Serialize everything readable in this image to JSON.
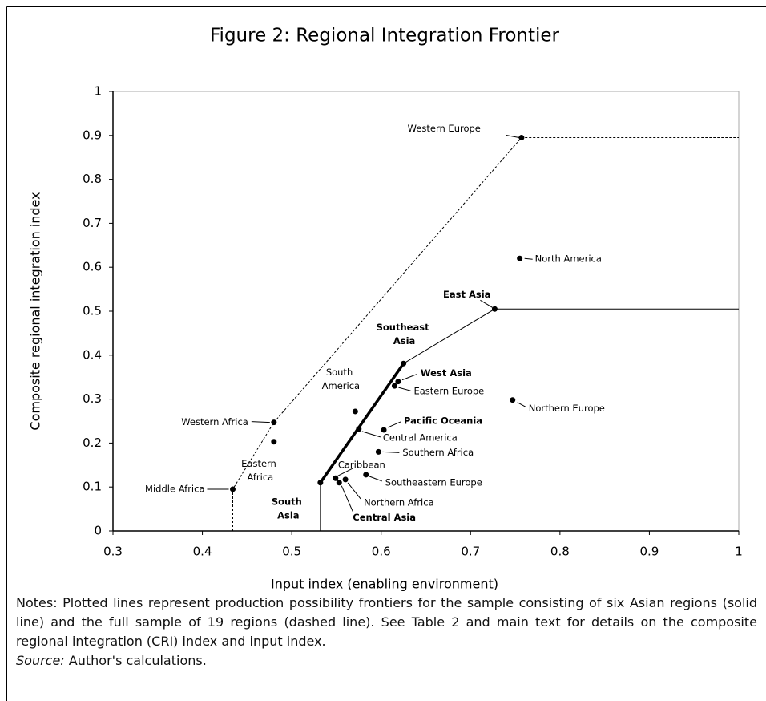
{
  "chart_data": {
    "type": "scatter",
    "title": "Figure 2: Regional Integration Frontier",
    "xlabel": "Input index (enabling environment)",
    "ylabel": "Composite regional integration index",
    "xlim": [
      0.3,
      1
    ],
    "ylim": [
      0,
      1
    ],
    "xticks": [
      0.3,
      0.4,
      0.5,
      0.6,
      0.7,
      0.8,
      0.9,
      1
    ],
    "yticks": [
      0,
      0.1,
      0.2,
      0.3,
      0.4,
      0.5,
      0.6,
      0.7,
      0.8,
      0.9,
      1
    ],
    "grid": false,
    "color": "#000000",
    "points": [
      {
        "name": "Western Europe",
        "x": 0.757,
        "y": 0.895,
        "bold": false
      },
      {
        "name": "North America",
        "x": 0.755,
        "y": 0.62,
        "bold": false
      },
      {
        "name": "Northern Europe",
        "x": 0.747,
        "y": 0.298,
        "bold": false
      },
      {
        "name": "East Asia",
        "x": 0.727,
        "y": 0.505,
        "bold": true
      },
      {
        "name": "Southeast Asia",
        "x": 0.625,
        "y": 0.381,
        "bold": true
      },
      {
        "name": "West Asia",
        "x": 0.619,
        "y": 0.34,
        "bold": true
      },
      {
        "name": "Eastern Europe",
        "x": 0.615,
        "y": 0.33,
        "bold": false
      },
      {
        "name": "Pacific Oceania",
        "x": 0.603,
        "y": 0.23,
        "bold": true
      },
      {
        "name": "Central America",
        "x": 0.575,
        "y": 0.232,
        "bold": false
      },
      {
        "name": "South America",
        "x": 0.571,
        "y": 0.272,
        "bold": false
      },
      {
        "name": "Southern Africa",
        "x": 0.597,
        "y": 0.18,
        "bold": false
      },
      {
        "name": "Southeastern Europe",
        "x": 0.583,
        "y": 0.128,
        "bold": false
      },
      {
        "name": "Caribbean",
        "x": 0.549,
        "y": 0.12,
        "bold": false
      },
      {
        "name": "Northern Africa",
        "x": 0.56,
        "y": 0.117,
        "bold": false
      },
      {
        "name": "Central Asia",
        "x": 0.553,
        "y": 0.11,
        "bold": true
      },
      {
        "name": "South Asia",
        "x": 0.532,
        "y": 0.11,
        "bold": true
      },
      {
        "name": "Western Africa",
        "x": 0.48,
        "y": 0.247,
        "bold": false
      },
      {
        "name": "Eastern Africa",
        "x": 0.48,
        "y": 0.203,
        "bold": false
      },
      {
        "name": "Middle Africa",
        "x": 0.434,
        "y": 0.095,
        "bold": false
      }
    ],
    "lines": [
      {
        "style": "dashed",
        "width": 1,
        "x": [
          0.434,
          0.434,
          0.48,
          0.757,
          1
        ],
        "y": [
          0,
          0.095,
          0.247,
          0.895,
          0.895
        ]
      },
      {
        "style": "solid",
        "width": 1,
        "x": [
          0.532,
          0.532
        ],
        "y": [
          0,
          0.11
        ]
      },
      {
        "style": "solid",
        "width": 3.5,
        "x": [
          0.532,
          0.625
        ],
        "y": [
          0.11,
          0.381
        ]
      },
      {
        "style": "solid",
        "width": 1,
        "x": [
          0.625,
          0.727,
          1
        ],
        "y": [
          0.381,
          0.505,
          0.505
        ]
      }
    ]
  },
  "notes": {
    "text": "Notes: Plotted lines represent production possibility frontiers for the sample consisting of six Asian regions (solid line) and the full sample of 19 regions (dashed line). See Table 2 and main text for details on the composite regional integration (CRI) index and input index.",
    "source_label": "Source:",
    "source_text": "Author's calculations."
  }
}
